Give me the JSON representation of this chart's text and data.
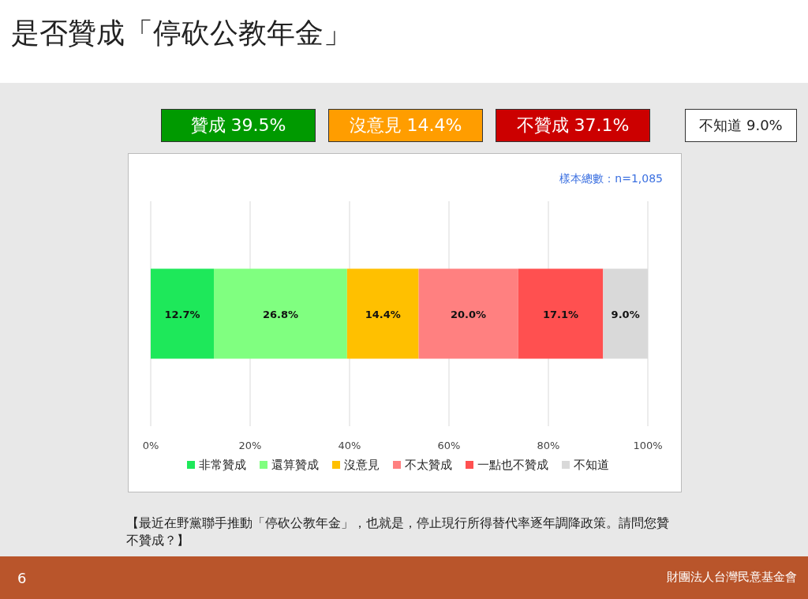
{
  "chart_data": {
    "type": "bar",
    "orientation": "horizontal",
    "stacked": true,
    "title": "是否贊成「停砍公教年金」",
    "categories": [
      null
    ],
    "series": [
      {
        "name": "非常贊成",
        "color": "#1ee85a",
        "values": [
          12.7
        ],
        "value_labels": [
          "12.7%"
        ]
      },
      {
        "name": "還算贊成",
        "color": "#80ff80",
        "values": [
          26.8
        ],
        "value_labels": [
          "26.8%"
        ]
      },
      {
        "name": "沒意見",
        "color": "#ffc000",
        "values": [
          14.4
        ],
        "value_labels": [
          "14.4%"
        ]
      },
      {
        "name": "不太贊成",
        "color": "#ff8080",
        "values": [
          20.0
        ],
        "value_labels": [
          "20.0%"
        ]
      },
      {
        "name": "一點也不贊成",
        "color": "#ff5050",
        "values": [
          17.1
        ],
        "value_labels": [
          "17.1%"
        ]
      },
      {
        "name": "不知道",
        "color": "#d9d9d9",
        "values": [
          9.0
        ],
        "value_labels": [
          "9.0%"
        ]
      }
    ],
    "xlim": [
      0,
      100
    ],
    "xticks": [
      {
        "value": 0,
        "label": "0%"
      },
      {
        "value": 20,
        "label": "20%"
      },
      {
        "value": 40,
        "label": "40%"
      },
      {
        "value": 60,
        "label": "60%"
      },
      {
        "value": 80,
        "label": "80%"
      },
      {
        "value": 100,
        "label": "100%"
      }
    ],
    "grid": "x",
    "legend": "bottom",
    "annotations": [
      "贊成 39.5%",
      "沒意見 14.4%",
      "不贊成 37.1%",
      "不知道 9.0%",
      "樣本總數：n=1,085",
      "【最近在野黨聯手推動「停砍公教年金」，也就是，停止現行所得替代率逐年調降政策。請問您贊不贊成？】",
      "6",
      "財團法人台灣民意基金會"
    ]
  }
}
